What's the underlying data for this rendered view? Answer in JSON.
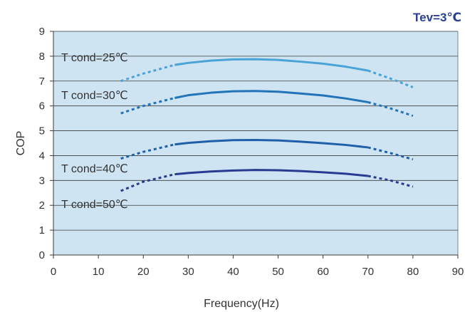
{
  "condition_label": "Tev=3℃",
  "colors": {
    "plot_background": "#cfe4f3",
    "grid": "#3a3a3a",
    "axis": "#3a3a3a",
    "condition_text": "#2a3f8f",
    "text": "#333333"
  },
  "chart_data": {
    "type": "line",
    "title": "",
    "xlabel": "Frequency(Hz)",
    "ylabel": "COP",
    "xlim": [
      0,
      90
    ],
    "ylim": [
      0,
      9
    ],
    "x_ticks": [
      0,
      10,
      20,
      30,
      40,
      50,
      60,
      70,
      80,
      90
    ],
    "y_ticks": [
      0,
      1,
      2,
      3,
      4,
      5,
      6,
      7,
      8,
      9
    ],
    "grid": "horizontal",
    "line_style_note": "dashed segments below 27 Hz and above 70 Hz",
    "series": [
      {
        "name": "T cond=25℃",
        "color": "#4aa3d6",
        "solid_range": [
          27,
          70
        ],
        "x": [
          15,
          20,
          27,
          30,
          35,
          40,
          45,
          50,
          55,
          60,
          65,
          70,
          75,
          80
        ],
        "y": [
          7.0,
          7.3,
          7.65,
          7.73,
          7.82,
          7.87,
          7.88,
          7.85,
          7.78,
          7.7,
          7.58,
          7.42,
          7.1,
          6.75
        ]
      },
      {
        "name": "T cond=30℃",
        "color": "#2273b8",
        "solid_range": [
          27,
          70
        ],
        "x": [
          15,
          20,
          27,
          30,
          35,
          40,
          45,
          50,
          55,
          60,
          65,
          70,
          75,
          80
        ],
        "y": [
          5.7,
          6.0,
          6.32,
          6.43,
          6.53,
          6.59,
          6.6,
          6.57,
          6.5,
          6.42,
          6.3,
          6.15,
          5.9,
          5.6
        ]
      },
      {
        "name": "T cond=40℃",
        "color": "#1f5fa8",
        "solid_range": [
          27,
          70
        ],
        "x": [
          15,
          20,
          27,
          30,
          35,
          40,
          45,
          50,
          55,
          60,
          65,
          70,
          75,
          80
        ],
        "y": [
          3.88,
          4.15,
          4.45,
          4.51,
          4.58,
          4.62,
          4.63,
          4.61,
          4.56,
          4.5,
          4.43,
          4.33,
          4.1,
          3.85
        ]
      },
      {
        "name": "T cond=50℃",
        "color": "#283b91",
        "solid_range": [
          27,
          70
        ],
        "x": [
          15,
          20,
          27,
          30,
          35,
          40,
          45,
          50,
          55,
          60,
          65,
          70,
          75,
          80
        ],
        "y": [
          2.58,
          2.95,
          3.25,
          3.3,
          3.36,
          3.4,
          3.42,
          3.41,
          3.38,
          3.33,
          3.27,
          3.18,
          3.0,
          2.75
        ]
      }
    ]
  }
}
